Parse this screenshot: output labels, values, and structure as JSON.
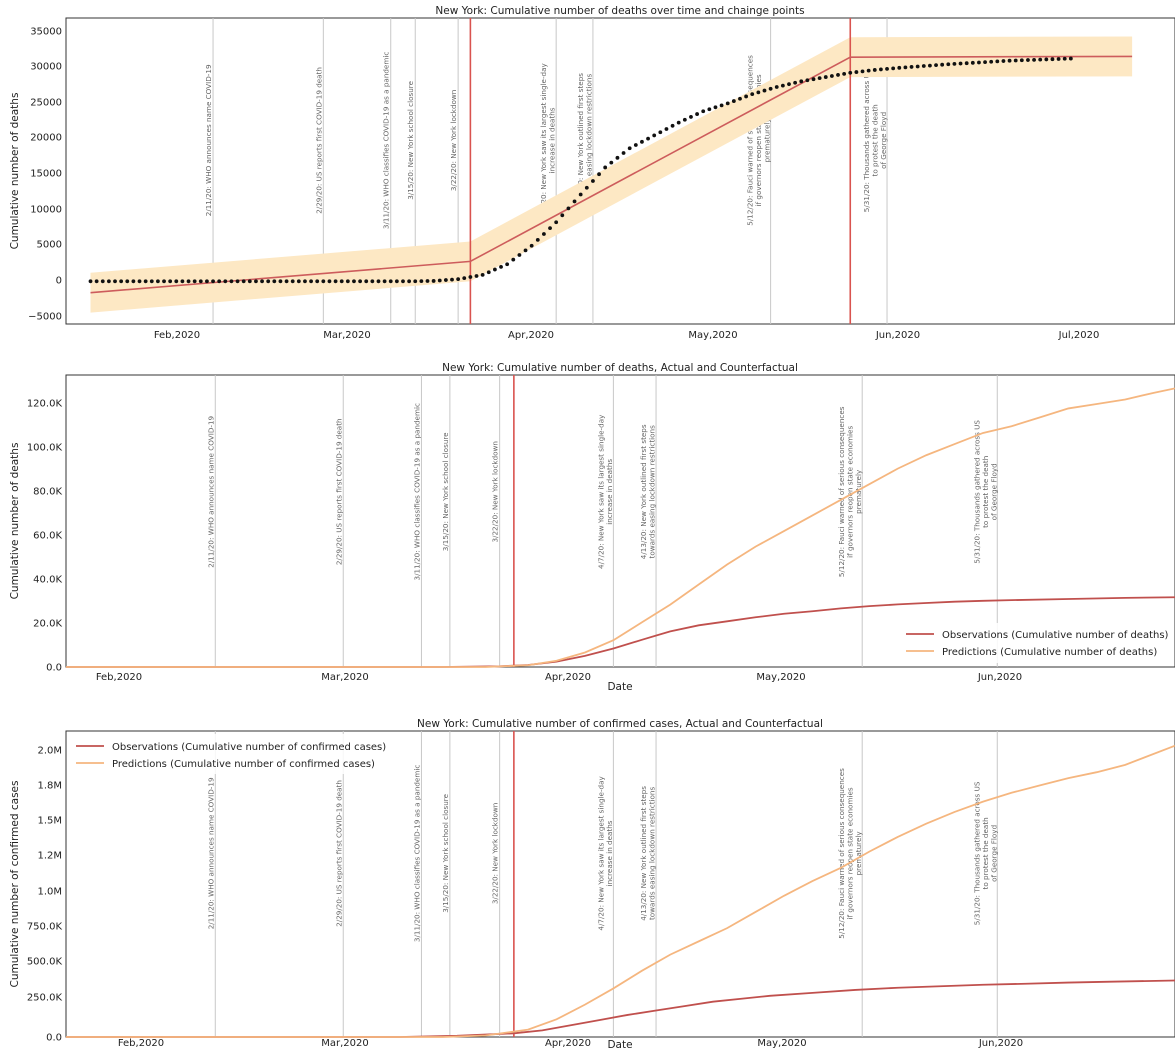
{
  "events": [
    {
      "date": "2020-02-11",
      "label": "2/11/20: WHO announces name COVID-19"
    },
    {
      "date": "2020-02-29",
      "label": "2/29/20: US reports first COVID-19 death"
    },
    {
      "date": "2020-03-11",
      "label": "3/11/20: WHO classifies COVID-19 as a pandemic"
    },
    {
      "date": "2020-03-15",
      "label": "3/15/20: New York school closure"
    },
    {
      "date": "2020-03-22",
      "label": "3/22/20: New York lockdown"
    },
    {
      "date": "2020-04-07",
      "label": "4/7/20: New York saw its largest single-day\nincrease in deaths"
    },
    {
      "date": "2020-04-13",
      "label": "4/13/20: New York outlined first steps\ntowards easing lockdown restrictions"
    },
    {
      "date": "2020-05-12",
      "label": "5/12/20: Fauci warned of serious consequences\nif governors reopen state economies\nprematurely"
    },
    {
      "date": "2020-05-31",
      "label": "5/31/20: Thousands gathered across US\nto protest the death\nof George Floyd"
    }
  ],
  "colors": {
    "changepoint": "#d9534f",
    "trend": "#cd5c5c",
    "band": "#fde8c4",
    "observations": "#c0504d",
    "predictions": "#f5b67f",
    "event_line": "#c8c8c8",
    "actual_dots": "#111111"
  },
  "chart_data": [
    {
      "type": "scatter",
      "title": "New York: Cumulative number of deaths over time and chainge points",
      "xlabel": "",
      "ylabel": "Cumulative number of deaths",
      "x_ticks": [
        "Feb,2020",
        "Mar,2020",
        "Apr,2020",
        "May,2020",
        "Jun,2020",
        "Jul,2020"
      ],
      "y_ticks": [
        "35000",
        "30000",
        "25000",
        "20000",
        "15000",
        "10000",
        "5000",
        "0",
        "−5000"
      ],
      "ylim": [
        -6000,
        37000
      ],
      "xlim": [
        "2020-01-18",
        "2020-07-17"
      ],
      "changepoints": [
        "2020-03-24",
        "2020-05-25"
      ],
      "trend": {
        "x": [
          "2020-01-22",
          "2020-03-24",
          "2020-05-25",
          "2020-07-10"
        ],
        "y": [
          -1600,
          2800,
          31500,
          31600
        ]
      },
      "band_halfwidth": 2800,
      "series": [
        {
          "type": "scatter",
          "x": [
            "2020-01-22",
            "2020-03-14",
            "2020-03-18",
            "2020-03-22",
            "2020-03-26",
            "2020-03-30",
            "2020-04-03",
            "2020-04-07",
            "2020-04-11",
            "2020-04-15",
            "2020-04-19",
            "2020-04-23",
            "2020-04-27",
            "2020-05-01",
            "2020-05-05",
            "2020-05-09",
            "2020-05-13",
            "2020-05-17",
            "2020-05-21",
            "2020-05-25",
            "2020-05-29",
            "2020-06-02",
            "2020-06-10",
            "2020-06-20",
            "2020-06-30"
          ],
          "y": [
            0,
            0,
            50,
            300,
            900,
            2400,
            5000,
            8300,
            12200,
            16000,
            18700,
            20500,
            22300,
            23900,
            25000,
            26300,
            27300,
            28100,
            28700,
            29300,
            29700,
            30000,
            30500,
            31000,
            31300
          ]
        }
      ]
    },
    {
      "type": "line",
      "title": "New York: Cumulative number of deaths, Actual and Counterfactual",
      "xlabel": "Date",
      "ylabel": "Cumulative number of deaths",
      "x_ticks": [
        "Feb,2020",
        "Mar,2020",
        "Apr,2020",
        "May,2020",
        "Jun,2020"
      ],
      "y_ticks": [
        "120.0K",
        "100.0K",
        "80.0K",
        "60.0K",
        "40.0K",
        "20.0K",
        "0.0"
      ],
      "ylim": [
        0,
        131000
      ],
      "xlim": [
        "2020-01-21",
        "2020-06-25"
      ],
      "changepoints": [
        "2020-03-24"
      ],
      "legend": "lower-right",
      "series": [
        {
          "name": "Observations (Cumulative number of deaths)",
          "x": [
            "2020-01-21",
            "2020-03-14",
            "2020-03-22",
            "2020-03-26",
            "2020-03-30",
            "2020-04-03",
            "2020-04-07",
            "2020-04-11",
            "2020-04-15",
            "2020-04-19",
            "2020-04-23",
            "2020-04-27",
            "2020-05-01",
            "2020-05-05",
            "2020-05-09",
            "2020-05-13",
            "2020-05-17",
            "2020-05-21",
            "2020-05-25",
            "2020-05-29",
            "2020-06-02",
            "2020-06-10",
            "2020-06-18",
            "2020-06-25"
          ],
          "y": [
            0,
            0,
            300,
            900,
            2400,
            5000,
            8300,
            12200,
            16000,
            18700,
            20500,
            22300,
            23900,
            25000,
            26300,
            27300,
            28100,
            28700,
            29300,
            29700,
            30000,
            30500,
            31000,
            31300
          ]
        },
        {
          "name": "Predictions (Cumulative number of deaths)",
          "x": [
            "2020-01-21",
            "2020-03-20",
            "2020-03-26",
            "2020-03-30",
            "2020-04-03",
            "2020-04-07",
            "2020-04-11",
            "2020-04-15",
            "2020-04-19",
            "2020-04-23",
            "2020-04-27",
            "2020-05-01",
            "2020-05-05",
            "2020-05-09",
            "2020-05-13",
            "2020-05-17",
            "2020-05-21",
            "2020-05-25",
            "2020-05-29",
            "2020-06-02",
            "2020-06-06",
            "2020-06-10",
            "2020-06-14",
            "2020-06-18",
            "2020-06-22",
            "2020-06-25"
          ],
          "y": [
            0,
            0,
            800,
            2800,
            6500,
            12000,
            20000,
            28000,
            37000,
            46000,
            54000,
            61000,
            68000,
            75000,
            82000,
            89000,
            95000,
            100000,
            105000,
            108000,
            112000,
            116000,
            118000,
            120000,
            123000,
            125000
          ]
        }
      ]
    },
    {
      "type": "line",
      "title": "New York: Cumulative number of confirmed cases, Actual and Counterfactual",
      "xlabel": "Date",
      "ylabel": "Cumulative number of confirmed cases",
      "x_ticks": [
        "Feb,2020",
        "Mar,2020",
        "Apr,2020",
        "May,2020",
        "Jun,2020"
      ],
      "y_ticks": [
        "2.0M",
        "1.8M",
        "1.5M",
        "1.2M",
        "1.0M",
        "750.0K",
        "500.0K",
        "250.0K",
        "0.0"
      ],
      "ylim": [
        0,
        2080000
      ],
      "xlim": [
        "2020-01-21",
        "2020-06-25"
      ],
      "changepoints": [
        "2020-03-24"
      ],
      "legend": "top-left",
      "series": [
        {
          "name": "Observations (Cumulative number of confirmed cases)",
          "x": [
            "2020-01-21",
            "2020-03-08",
            "2020-03-16",
            "2020-03-24",
            "2020-03-28",
            "2020-04-01",
            "2020-04-05",
            "2020-04-09",
            "2020-04-13",
            "2020-04-17",
            "2020-04-21",
            "2020-04-25",
            "2020-04-29",
            "2020-05-05",
            "2020-05-11",
            "2020-05-17",
            "2020-05-23",
            "2020-05-29",
            "2020-06-04",
            "2020-06-10",
            "2020-06-16",
            "2020-06-25"
          ],
          "y": [
            0,
            0,
            8000,
            25000,
            45000,
            80000,
            115000,
            150000,
            180000,
            210000,
            240000,
            260000,
            280000,
            300000,
            320000,
            335000,
            345000,
            355000,
            362000,
            370000,
            376000,
            384000
          ]
        },
        {
          "name": "Predictions (Cumulative number of confirmed cases)",
          "x": [
            "2020-01-21",
            "2020-03-14",
            "2020-03-20",
            "2020-03-26",
            "2020-03-30",
            "2020-04-03",
            "2020-04-07",
            "2020-04-11",
            "2020-04-15",
            "2020-04-19",
            "2020-04-23",
            "2020-04-27",
            "2020-05-01",
            "2020-05-05",
            "2020-05-09",
            "2020-05-13",
            "2020-05-17",
            "2020-05-21",
            "2020-05-25",
            "2020-05-29",
            "2020-06-02",
            "2020-06-06",
            "2020-06-10",
            "2020-06-14",
            "2020-06-18",
            "2020-06-25"
          ],
          "y": [
            0,
            0,
            10000,
            50000,
            120000,
            220000,
            330000,
            450000,
            560000,
            650000,
            740000,
            850000,
            960000,
            1060000,
            1150000,
            1260000,
            1360000,
            1450000,
            1530000,
            1600000,
            1660000,
            1710000,
            1760000,
            1800000,
            1850000,
            1980000
          ]
        }
      ]
    }
  ]
}
